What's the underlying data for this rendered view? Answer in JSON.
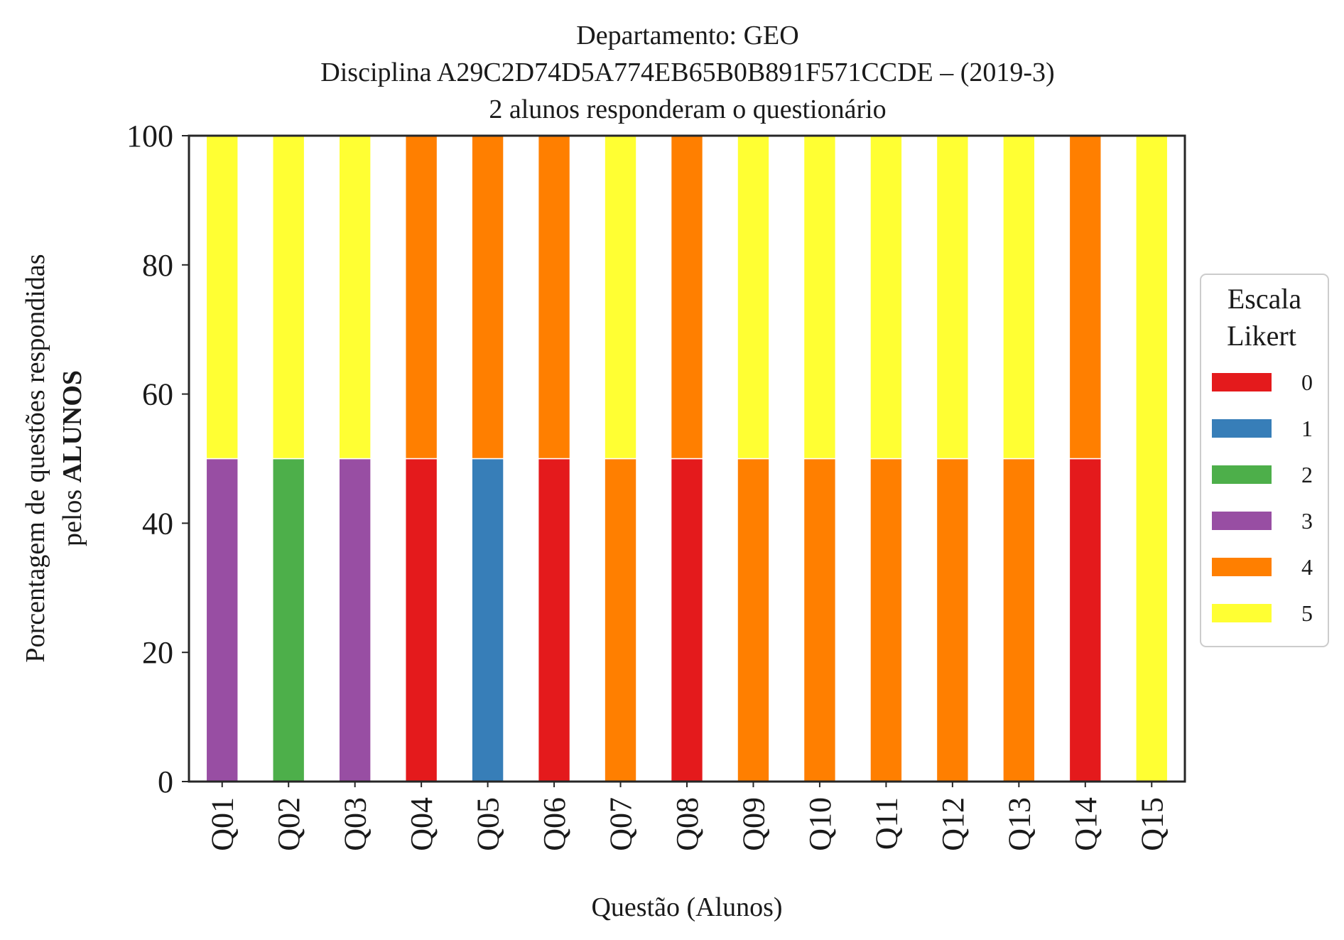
{
  "chart_data": {
    "type": "bar",
    "stacked": true,
    "title": [
      "Departamento: GEO",
      "Disciplina A29C2D74D5A774EB65B0B891F571CCDE – (2019-3)",
      "2 alunos responderam o questionário"
    ],
    "xlabel": "Questão (Alunos)",
    "ylabel_line1": "Porcentagem de questões respondidas",
    "ylabel_line2_prefix": "pelos ",
    "ylabel_line2_bold": "ALUNOS",
    "ylim": [
      0,
      100
    ],
    "yticks": [
      "0",
      "20",
      "40",
      "60",
      "80",
      "100"
    ],
    "grid": false,
    "legend": {
      "title": [
        "Escala",
        "Likert"
      ],
      "position": "right-center"
    },
    "categories": [
      "Q01",
      "Q02",
      "Q03",
      "Q04",
      "Q05",
      "Q06",
      "Q07",
      "Q08",
      "Q09",
      "Q10",
      "Q11",
      "Q12",
      "Q13",
      "Q14",
      "Q15"
    ],
    "series": [
      {
        "name": "0",
        "color": "#e41a1c",
        "values": [
          0,
          0,
          0,
          50,
          0,
          50,
          0,
          50,
          0,
          0,
          0,
          0,
          0,
          50,
          0
        ]
      },
      {
        "name": "1",
        "color": "#377eb8",
        "values": [
          0,
          0,
          0,
          0,
          50,
          0,
          0,
          0,
          0,
          0,
          0,
          0,
          0,
          0,
          0
        ]
      },
      {
        "name": "2",
        "color": "#4daf4a",
        "values": [
          0,
          50,
          0,
          0,
          0,
          0,
          0,
          0,
          0,
          0,
          0,
          0,
          0,
          0,
          0
        ]
      },
      {
        "name": "3",
        "color": "#984ea3",
        "values": [
          50,
          0,
          50,
          0,
          0,
          0,
          0,
          0,
          0,
          0,
          0,
          0,
          0,
          0,
          0
        ]
      },
      {
        "name": "4",
        "color": "#ff7f00",
        "values": [
          0,
          0,
          0,
          50,
          50,
          50,
          50,
          50,
          50,
          50,
          50,
          50,
          50,
          50,
          0
        ]
      },
      {
        "name": "5",
        "color": "#ffff33",
        "values": [
          50,
          50,
          50,
          0,
          0,
          0,
          50,
          0,
          50,
          50,
          50,
          50,
          50,
          0,
          100
        ]
      }
    ]
  }
}
